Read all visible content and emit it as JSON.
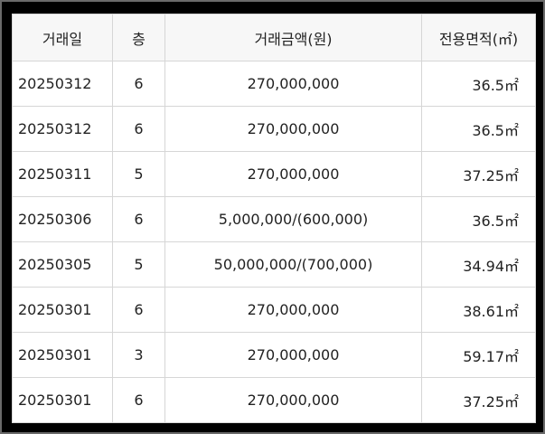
{
  "table": {
    "headers": {
      "date": "거래일",
      "floor": "층",
      "amount": "거래금액(원)",
      "area": "전용면적(㎡)"
    },
    "rows": [
      {
        "date": "20250312",
        "floor": "6",
        "amount": "270,000,000",
        "area": "36.5㎡"
      },
      {
        "date": "20250312",
        "floor": "6",
        "amount": "270,000,000",
        "area": "36.5㎡"
      },
      {
        "date": "20250311",
        "floor": "5",
        "amount": "270,000,000",
        "area": "37.25㎡"
      },
      {
        "date": "20250306",
        "floor": "6",
        "amount": "5,000,000/(600,000)",
        "area": "36.5㎡"
      },
      {
        "date": "20250305",
        "floor": "5",
        "amount": "50,000,000/(700,000)",
        "area": "34.94㎡"
      },
      {
        "date": "20250301",
        "floor": "6",
        "amount": "270,000,000",
        "area": "38.61㎡"
      },
      {
        "date": "20250301",
        "floor": "3",
        "amount": "270,000,000",
        "area": "59.17㎡"
      },
      {
        "date": "20250301",
        "floor": "6",
        "amount": "270,000,000",
        "area": "37.25㎡"
      }
    ]
  }
}
